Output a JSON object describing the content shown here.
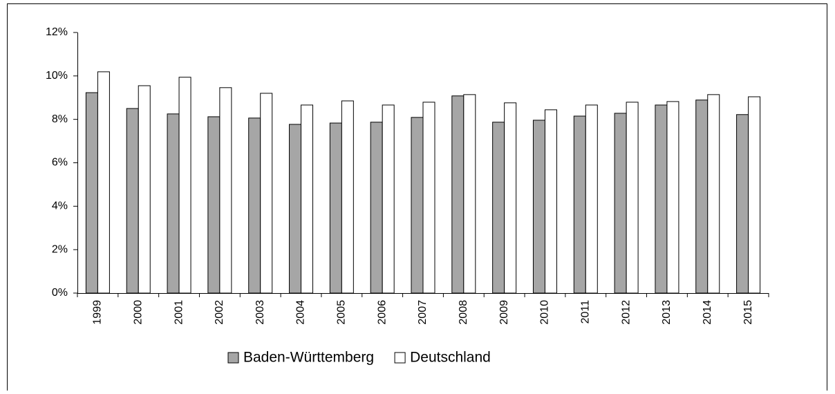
{
  "chart_data": {
    "type": "bar",
    "categories": [
      "1999",
      "2000",
      "2001",
      "2002",
      "2003",
      "2004",
      "2005",
      "2006",
      "2007",
      "2008",
      "2009",
      "2010",
      "2011",
      "2012",
      "2013",
      "2014",
      "2015"
    ],
    "series": [
      {
        "name": "Baden-Württemberg",
        "color": "#a6a6a6",
        "values": [
          9.23,
          8.5,
          8.25,
          8.12,
          8.06,
          7.77,
          7.83,
          7.87,
          8.09,
          9.08,
          7.87,
          7.96,
          8.15,
          8.28,
          8.66,
          8.89,
          8.22
        ]
      },
      {
        "name": "Deutschland",
        "color": "#ffffff",
        "values": [
          10.19,
          9.55,
          9.94,
          9.46,
          9.2,
          8.66,
          8.85,
          8.66,
          8.79,
          9.14,
          8.76,
          8.44,
          8.66,
          8.79,
          8.82,
          9.14,
          9.04
        ]
      }
    ],
    "ylim": [
      0,
      12
    ],
    "yticks": [
      {
        "value": 0,
        "label": "0%"
      },
      {
        "value": 2,
        "label": "2%"
      },
      {
        "value": 4,
        "label": "4%"
      },
      {
        "value": 6,
        "label": "6%"
      },
      {
        "value": 8,
        "label": "8%"
      },
      {
        "value": 10,
        "label": "10%"
      },
      {
        "value": 12,
        "label": "12%"
      }
    ],
    "grid": false,
    "legend": "bottom"
  }
}
